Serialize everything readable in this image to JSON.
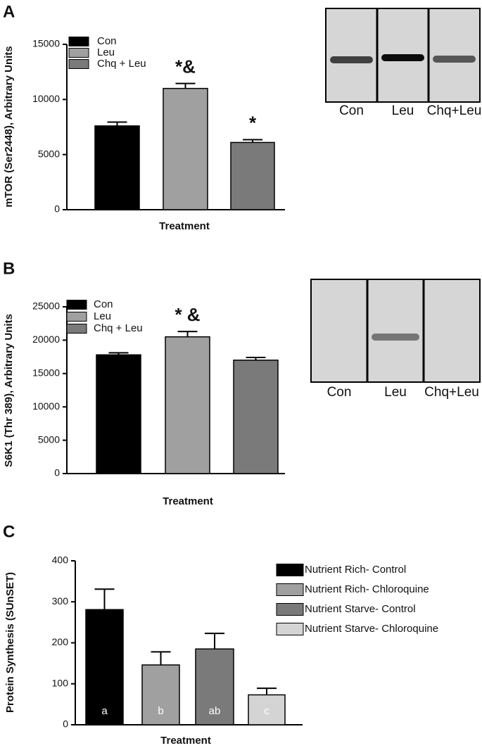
{
  "chart_data": [
    {
      "type": "bar",
      "panel": "A",
      "ylabel": "mTOR (Ser2448), Arbitrary Units",
      "xlabel": "Treatment",
      "ylim": [
        0,
        15000
      ],
      "yticks": [
        0,
        5000,
        10000,
        15000
      ],
      "legend": "upper left",
      "series": [
        {
          "name": "Con",
          "color": "#000000",
          "values": [
            7600
          ],
          "errors": [
            350
          ]
        },
        {
          "name": "Leu",
          "color": "#a0a0a0",
          "values": [
            11000
          ],
          "errors": [
            450
          ],
          "annotation": "*&"
        },
        {
          "name": "Chq + Leu",
          "color": "#7a7a7a",
          "values": [
            6100
          ],
          "errors": [
            250
          ],
          "annotation": "*"
        }
      ],
      "blot_labels": [
        "Con",
        "Leu",
        "Chq+Leu"
      ]
    },
    {
      "type": "bar",
      "panel": "B",
      "ylabel": "S6K1 (Thr 389), Arbitrary Units",
      "xlabel": "Treatment",
      "ylim": [
        0,
        25000
      ],
      "yticks": [
        0,
        5000,
        10000,
        15000,
        20000,
        25000
      ],
      "legend": "upper left",
      "series": [
        {
          "name": "Con",
          "color": "#000000",
          "values": [
            17800
          ],
          "errors": [
            300
          ]
        },
        {
          "name": "Leu",
          "color": "#a0a0a0",
          "values": [
            20500
          ],
          "errors": [
            800
          ],
          "annotation": "* &"
        },
        {
          "name": "Chq + Leu",
          "color": "#7a7a7a",
          "values": [
            17000
          ],
          "errors": [
            400
          ]
        }
      ],
      "blot_labels": [
        "Con",
        "Leu",
        "Chq+Leu"
      ]
    },
    {
      "type": "bar",
      "panel": "C",
      "ylabel": "Protein Synthesis (SUnSET)",
      "xlabel": "Treatment",
      "ylim": [
        0,
        400
      ],
      "yticks": [
        0,
        100,
        200,
        300,
        400
      ],
      "legend": "right",
      "series": [
        {
          "name": "Nutrient Rich- Control",
          "color": "#000000",
          "values": [
            281
          ],
          "errors": [
            50
          ],
          "group_label": "a"
        },
        {
          "name": "Nutrient Rich- Chloroquine",
          "color": "#a0a0a0",
          "values": [
            146
          ],
          "errors": [
            32
          ],
          "group_label": "b"
        },
        {
          "name": "Nutrient Starve- Control",
          "color": "#7a7a7a",
          "values": [
            185
          ],
          "errors": [
            38
          ],
          "group_label": "ab"
        },
        {
          "name": "Nutrient Starve- Chloroquine",
          "color": "#d4d4d4",
          "values": [
            73
          ],
          "errors": [
            16
          ],
          "group_label": "c"
        }
      ]
    }
  ]
}
